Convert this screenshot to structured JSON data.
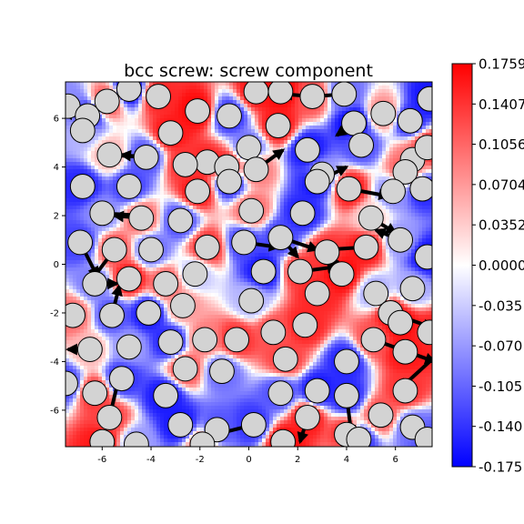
{
  "chart_data": {
    "type": "heatmap",
    "title": "bcc screw: screw component",
    "xlabel": "",
    "ylabel": "",
    "xlim": [
      -7.5,
      7.5
    ],
    "ylim": [
      -7.5,
      7.5
    ],
    "x_ticks": [
      -6,
      -4,
      -2,
      0,
      2,
      4,
      6
    ],
    "y_ticks": [
      -6,
      -4,
      -2,
      0,
      2,
      4,
      6
    ],
    "grid": false,
    "colormap": {
      "name": "bwr",
      "low_color": "#0000ff",
      "mid_color": "#ffffff",
      "high_color": "#ff0000",
      "vmin": -0.1759,
      "vmax": 0.1759
    },
    "colorbar_ticks": [
      {
        "value": 0.1759,
        "label": "0.1759"
      },
      {
        "value": 0.1407,
        "label": "0.1407"
      },
      {
        "value": 0.1056,
        "label": "0.1056"
      },
      {
        "value": 0.0704,
        "label": "0.0704"
      },
      {
        "value": 0.0352,
        "label": "0.0352"
      },
      {
        "value": 0.0,
        "label": "0.0000"
      },
      {
        "value": -0.0352,
        "label": "-0.035"
      },
      {
        "value": -0.0704,
        "label": "-0.070"
      },
      {
        "value": -0.1056,
        "label": "-0.105"
      },
      {
        "value": -0.1407,
        "label": "-0.140"
      },
      {
        "value": -0.1759,
        "label": "-0.175"
      }
    ],
    "atom_style": {
      "fill": "#d3d3d3",
      "stroke": "#000000",
      "radius": 0.5
    },
    "atoms": [
      [
        -7.4,
        6.5,
        -0.08
      ],
      [
        -6.6,
        6.1,
        -0.16
      ],
      [
        -5.8,
        6.7,
        0.12
      ],
      [
        -4.9,
        7.2,
        -0.17
      ],
      [
        -3.7,
        6.9,
        0.15
      ],
      [
        -2.1,
        6.3,
        0.17
      ],
      [
        -0.8,
        6.1,
        -0.14
      ],
      [
        0.3,
        7.1,
        0.16
      ],
      [
        1.3,
        7.1,
        0.17
      ],
      [
        2.6,
        6.9,
        0.12
      ],
      [
        3.9,
        7.0,
        -0.1
      ],
      [
        4.3,
        5.8,
        -0.17
      ],
      [
        5.5,
        6.2,
        0.08
      ],
      [
        6.6,
        5.9,
        -0.15
      ],
      [
        7.4,
        6.8,
        -0.16
      ],
      [
        -6.8,
        5.5,
        -0.05
      ],
      [
        -3.2,
        5.4,
        0.16
      ],
      [
        -1.7,
        4.2,
        0.15
      ],
      [
        0.0,
        4.8,
        -0.1
      ],
      [
        1.2,
        5.7,
        0.16
      ],
      [
        2.4,
        4.7,
        -0.16
      ],
      [
        4.6,
        4.9,
        -0.12
      ],
      [
        6.7,
        4.3,
        0.09
      ],
      [
        -5.7,
        4.5,
        0.05
      ],
      [
        -4.2,
        4.4,
        -0.12
      ],
      [
        -2.6,
        4.1,
        0.14
      ],
      [
        -0.9,
        4.0,
        0.16
      ],
      [
        0.3,
        3.9,
        0.09
      ],
      [
        3.0,
        3.7,
        -0.06
      ],
      [
        6.4,
        3.8,
        0.12
      ],
      [
        7.3,
        4.8,
        0.15
      ],
      [
        -6.8,
        3.2,
        -0.15
      ],
      [
        -4.9,
        3.2,
        -0.13
      ],
      [
        -2.1,
        3.0,
        0.16
      ],
      [
        -0.8,
        3.4,
        -0.16
      ],
      [
        2.8,
        3.4,
        -0.17
      ],
      [
        4.1,
        3.1,
        0.16
      ],
      [
        5.9,
        3.0,
        -0.08
      ],
      [
        7.1,
        3.1,
        -0.15
      ],
      [
        -6.0,
        2.1,
        -0.08
      ],
      [
        -4.4,
        1.9,
        0.1
      ],
      [
        -2.8,
        1.8,
        -0.12
      ],
      [
        0.1,
        2.2,
        0.1
      ],
      [
        2.2,
        2.1,
        -0.15
      ],
      [
        5.0,
        1.9,
        0.03
      ],
      [
        -6.9,
        0.9,
        -0.13
      ],
      [
        -5.5,
        0.6,
        0.12
      ],
      [
        -4.0,
        0.6,
        -0.1
      ],
      [
        -1.7,
        0.7,
        0.14
      ],
      [
        -0.2,
        0.9,
        -0.13
      ],
      [
        1.3,
        1.1,
        -0.13
      ],
      [
        3.2,
        0.5,
        0.14
      ],
      [
        4.8,
        0.7,
        0.16
      ],
      [
        6.2,
        1.0,
        -0.07
      ],
      [
        7.3,
        0.3,
        -0.16
      ],
      [
        -6.3,
        -0.8,
        -0.09
      ],
      [
        -4.9,
        -0.6,
        0.16
      ],
      [
        -3.4,
        -0.8,
        0.11
      ],
      [
        -2.2,
        -0.4,
        -0.04
      ],
      [
        0.6,
        -0.3,
        -0.16
      ],
      [
        2.1,
        -0.3,
        0.14
      ],
      [
        3.8,
        -0.4,
        0.17
      ],
      [
        5.2,
        -1.2,
        -0.06
      ],
      [
        6.7,
        -1.0,
        -0.06
      ],
      [
        -7.2,
        -2.1,
        0.1
      ],
      [
        -5.6,
        -2.1,
        -0.12
      ],
      [
        -4.1,
        -2.0,
        -0.16
      ],
      [
        -2.7,
        -1.7,
        0.07
      ],
      [
        0.1,
        -1.5,
        -0.05
      ],
      [
        2.8,
        -1.2,
        0.15
      ],
      [
        5.8,
        -2.0,
        0.16
      ],
      [
        -6.5,
        -3.5,
        0.05
      ],
      [
        -4.9,
        -3.4,
        -0.07
      ],
      [
        -3.2,
        -3.2,
        -0.15
      ],
      [
        -1.8,
        -3.1,
        0.09
      ],
      [
        -0.5,
        -3.1,
        0.14
      ],
      [
        1.0,
        -2.8,
        0.12
      ],
      [
        2.3,
        -2.5,
        0.15
      ],
      [
        5.1,
        -3.1,
        0.12
      ],
      [
        6.2,
        -2.4,
        0.17
      ],
      [
        7.4,
        -2.8,
        0.15
      ],
      [
        -7.5,
        -4.9,
        -0.13
      ],
      [
        -5.2,
        -4.7,
        -0.14
      ],
      [
        -2.6,
        -4.3,
        0.12
      ],
      [
        -1.1,
        -4.4,
        -0.1
      ],
      [
        1.5,
        -3.9,
        0.13
      ],
      [
        4.0,
        -4.0,
        -0.15
      ],
      [
        6.4,
        -3.6,
        0.16
      ],
      [
        -6.3,
        -5.3,
        0.14
      ],
      [
        -3.4,
        -5.4,
        -0.16
      ],
      [
        1.3,
        -5.3,
        -0.12
      ],
      [
        2.8,
        -5.2,
        -0.16
      ],
      [
        4.0,
        -5.4,
        -0.15
      ],
      [
        6.4,
        -5.2,
        0.14
      ],
      [
        -5.7,
        -6.3,
        0.13
      ],
      [
        -2.8,
        -6.6,
        -0.16
      ],
      [
        -1.3,
        -6.8,
        -0.12
      ],
      [
        0.2,
        -6.6,
        -0.14
      ],
      [
        2.4,
        -6.3,
        0.16
      ],
      [
        5.4,
        -6.2,
        0.12
      ],
      [
        6.7,
        -6.7,
        -0.1
      ],
      [
        -6.0,
        -7.3,
        0.16
      ],
      [
        -4.6,
        -7.4,
        -0.07
      ],
      [
        -1.9,
        -7.4,
        0.1
      ],
      [
        1.4,
        -7.3,
        0.17
      ],
      [
        4.0,
        -7.0,
        0.15
      ],
      [
        4.5,
        -7.2,
        -0.15
      ],
      [
        7.3,
        -7.2,
        -0.12
      ]
    ],
    "arrows": [
      [
        3.9,
        7.0,
        -1.2,
        -0.1
      ],
      [
        2.6,
        6.9,
        -1.2,
        0.1
      ],
      [
        -6.6,
        6.1,
        -1.0,
        0.1
      ],
      [
        0.3,
        3.9,
        1.1,
        0.8
      ],
      [
        2.8,
        3.4,
        1.2,
        0.6
      ],
      [
        4.1,
        3.1,
        1.6,
        -0.3
      ],
      [
        -5.7,
        4.5,
        1.4,
        -0.1
      ],
      [
        -6.0,
        2.1,
        1.6,
        -0.1
      ],
      [
        -0.2,
        0.9,
        1.4,
        -0.2
      ],
      [
        1.3,
        1.1,
        0.7,
        -0.8
      ],
      [
        1.3,
        1.1,
        1.5,
        -0.5
      ],
      [
        4.8,
        0.7,
        -1.7,
        -0.1
      ],
      [
        5.0,
        1.9,
        1.0,
        -0.6
      ],
      [
        2.1,
        -0.3,
        1.5,
        0.2
      ],
      [
        3.8,
        -0.4,
        -0.5,
        0.7
      ],
      [
        -6.9,
        0.9,
        0.7,
        -1.4
      ],
      [
        -5.5,
        0.6,
        -0.9,
        -1.2
      ],
      [
        -6.3,
        -0.8,
        0.9,
        0.0
      ],
      [
        5.8,
        -2.0,
        1.7,
        -0.6
      ],
      [
        5.1,
        -3.1,
        2.5,
        -0.9
      ],
      [
        7.4,
        -4.0,
        -1.2,
        -1.1
      ],
      [
        4.0,
        -5.4,
        0.2,
        -1.6
      ],
      [
        2.4,
        -6.3,
        -0.3,
        -1.0
      ],
      [
        -1.3,
        -6.8,
        -1.0,
        -0.6
      ],
      [
        0.2,
        -6.6,
        -1.6,
        -0.4
      ],
      [
        -7.2,
        -2.1,
        -0.6,
        0.0
      ],
      [
        -6.5,
        -3.5,
        -0.9,
        0.0
      ],
      [
        -5.7,
        -6.3,
        0.4,
        1.7
      ],
      [
        -5.6,
        -2.1,
        0.3,
        1.2
      ],
      [
        4.3,
        5.8,
        -0.7,
        -0.5
      ],
      [
        6.2,
        1.0,
        -1.0,
        0.4
      ],
      [
        -4.4,
        1.9,
        -1.1,
        0.1
      ],
      [
        -4.2,
        4.4,
        -1.0,
        0.1
      ]
    ]
  }
}
